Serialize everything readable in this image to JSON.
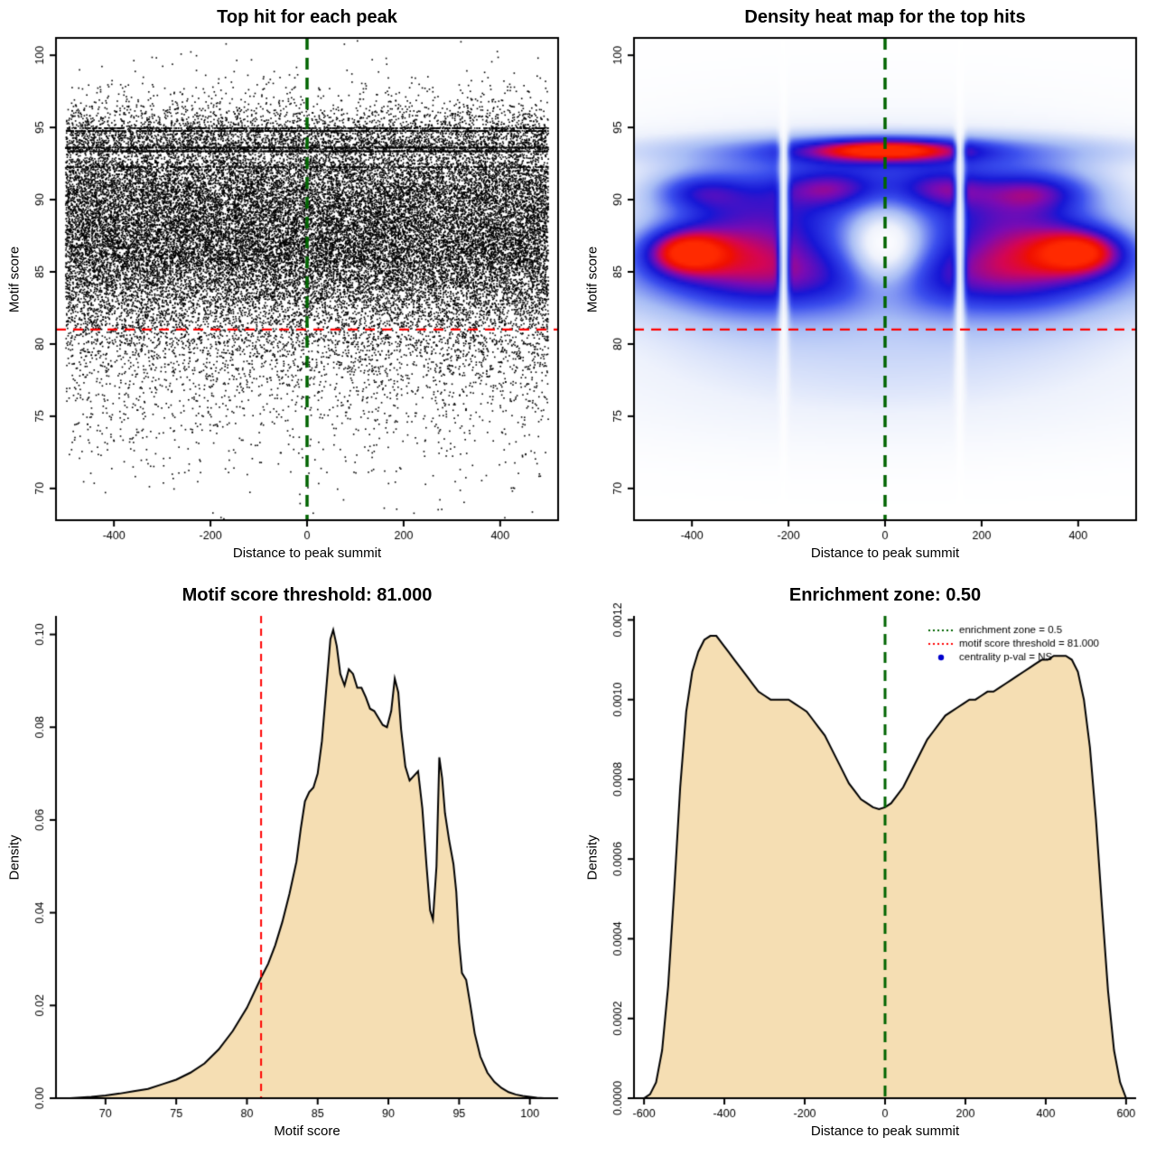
{
  "figure": {
    "background": "#ffffff",
    "layout": "2x2 grid of motif enrichment diagnostic plots"
  },
  "chart_data": [
    {
      "id": "top-hit-scatter",
      "type": "scatter",
      "title": "Top hit for each peak",
      "xlabel": "Distance to peak summit",
      "ylabel": "Motif score",
      "xlim": [
        -520,
        520
      ],
      "ylim": [
        67.8,
        101.2
      ],
      "xticks": [
        -400,
        -200,
        0,
        200,
        400
      ],
      "xtick_labels": [
        "-400",
        "-200",
        "0",
        "200",
        "400"
      ],
      "yticks": [
        70,
        75,
        80,
        85,
        90,
        95,
        100
      ],
      "ytick_labels": [
        "70",
        "75",
        "80",
        "85",
        "90",
        "95",
        "100"
      ],
      "box": true,
      "point_color": "#000000",
      "n_points": 36000,
      "x_distribution": {
        "type": "uniform",
        "min": -500,
        "max": 500
      },
      "y_distribution": {
        "type": "empirical",
        "source_chart": 2,
        "note": "motif scores sampled from the motif score density in panel 3"
      },
      "dense_score_lines": [
        {
          "y": 93.35,
          "n": 900
        },
        {
          "y": 93.6,
          "n": 700
        },
        {
          "y": 94.75,
          "n": 700
        },
        {
          "y": 94.95,
          "n": 500
        },
        {
          "y": 92.25,
          "n": 300
        }
      ],
      "vline": {
        "x": 0,
        "color": "#006400",
        "pattern": [
          13,
          9
        ],
        "width": 3.5
      },
      "hline": {
        "y": 81,
        "color": "#ff0000",
        "pattern": [
          11,
          8
        ],
        "width": 2.2
      }
    },
    {
      "id": "top-hits-heatmap",
      "type": "heatmap",
      "title": "Density heat map for the top hits",
      "xlabel": "Distance to peak summit",
      "ylabel": "Motif score",
      "xlim": [
        -520,
        520
      ],
      "ylim": [
        67.8,
        101.2
      ],
      "xticks": [
        -400,
        -200,
        0,
        200,
        400
      ],
      "xtick_labels": [
        "-400",
        "-200",
        "0",
        "200",
        "400"
      ],
      "yticks": [
        70,
        75,
        80,
        85,
        90,
        95,
        100
      ],
      "ytick_labels": [
        "70",
        "75",
        "80",
        "85",
        "90",
        "95",
        "100"
      ],
      "box": true,
      "colormap": [
        [
          0,
          "#ffffff"
        ],
        [
          0.12,
          "#eef2fc"
        ],
        [
          0.3,
          "#a8bdf5"
        ],
        [
          0.48,
          "#3c50ee"
        ],
        [
          0.62,
          "#1717d6"
        ],
        [
          0.74,
          "#7a0bb4"
        ],
        [
          0.84,
          "#d40556"
        ],
        [
          0.92,
          "#f01000"
        ],
        [
          1,
          "#ff2a00"
        ]
      ],
      "kernels": [
        {
          "x": -280,
          "y": 87.2,
          "sx": 130,
          "sy": 3.0,
          "w": 0.5
        },
        {
          "x": 280,
          "y": 87.2,
          "sx": 130,
          "sy": 3.0,
          "w": 0.5
        },
        {
          "x": 0,
          "y": 91.0,
          "sx": 200,
          "sy": 2.0,
          "w": 0.35
        },
        {
          "x": 0,
          "y": 84.5,
          "sx": 470,
          "sy": 1.8,
          "w": 0.3
        },
        {
          "x": 0,
          "y": 87.0,
          "sx": 500,
          "sy": 5.5,
          "w": 0.18
        },
        {
          "x": 0,
          "y": 80.0,
          "sx": 470,
          "sy": 3.5,
          "w": 0.13
        },
        {
          "x": 0,
          "y": 75.5,
          "sx": 430,
          "sy": 2.5,
          "w": 0.05
        },
        {
          "x": -420,
          "y": 86.4,
          "sx": 62,
          "sy": 1.15,
          "w": 0.55
        },
        {
          "x": 415,
          "y": 86.4,
          "sx": 68,
          "sy": 1.15,
          "w": 0.52
        },
        {
          "x": -390,
          "y": 90.6,
          "sx": 70,
          "sy": 0.95,
          "w": 0.3
        },
        {
          "x": 320,
          "y": 90.6,
          "sx": 80,
          "sy": 0.95,
          "w": 0.28
        },
        {
          "x": -120,
          "y": 90.8,
          "sx": 70,
          "sy": 0.85,
          "w": 0.22
        },
        {
          "x": 120,
          "y": 90.8,
          "sx": 60,
          "sy": 0.85,
          "w": 0.2
        },
        {
          "x": 0,
          "y": 93.45,
          "sx": 420,
          "sy": 0.85,
          "w": 0.28
        },
        {
          "x": 0,
          "y": 93.45,
          "sx": 115,
          "sy": 0.55,
          "w": 0.55
        },
        {
          "x": 0,
          "y": 86.5,
          "sx": 55,
          "sy": 2.2,
          "w": -0.45
        }
      ],
      "white_gaps": [
        {
          "x": -210,
          "sx": 7,
          "depth": 0.85
        },
        {
          "x": 155,
          "sx": 7,
          "depth": 0.85
        }
      ],
      "vline": {
        "x": 0,
        "color": "#006400",
        "pattern": [
          13,
          9
        ],
        "width": 3.5
      },
      "hline": {
        "y": 81,
        "color": "#ff0000",
        "pattern": [
          11,
          8
        ],
        "width": 2.2
      }
    },
    {
      "id": "motif-score-density",
      "type": "area",
      "title": "Motif score threshold: 81.000",
      "xlabel": "Motif score",
      "ylabel": "Density",
      "xlim": [
        66.5,
        102
      ],
      "ylim": [
        0,
        0.104
      ],
      "xticks": [
        70,
        75,
        80,
        85,
        90,
        95,
        100
      ],
      "xtick_labels": [
        "70",
        "75",
        "80",
        "85",
        "90",
        "95",
        "100"
      ],
      "yticks": [
        0,
        0.02,
        0.04,
        0.06,
        0.08,
        0.1
      ],
      "ytick_labels": [
        "0.00",
        "0.02",
        "0.04",
        "0.06",
        "0.08",
        "0.10"
      ],
      "box": false,
      "fill_color": "#f5deb3",
      "line_color": "#000000",
      "points": [
        [
          67.5,
          0
        ],
        [
          69,
          0.0003
        ],
        [
          70,
          0.0006
        ],
        [
          71,
          0.001
        ],
        [
          72,
          0.0015
        ],
        [
          73,
          0.002
        ],
        [
          74,
          0.003
        ],
        [
          75,
          0.004
        ],
        [
          76,
          0.0055
        ],
        [
          77,
          0.0075
        ],
        [
          78,
          0.0105
        ],
        [
          79,
          0.0145
        ],
        [
          80,
          0.0195
        ],
        [
          81,
          0.026
        ],
        [
          81.5,
          0.029
        ],
        [
          82,
          0.033
        ],
        [
          82.5,
          0.038
        ],
        [
          83,
          0.044
        ],
        [
          83.5,
          0.051
        ],
        [
          83.8,
          0.058
        ],
        [
          84.1,
          0.064
        ],
        [
          84.4,
          0.066
        ],
        [
          84.7,
          0.067
        ],
        [
          85,
          0.07
        ],
        [
          85.3,
          0.077
        ],
        [
          85.6,
          0.088
        ],
        [
          85.9,
          0.099
        ],
        [
          86.1,
          0.101
        ],
        [
          86.35,
          0.0975
        ],
        [
          86.6,
          0.0915
        ],
        [
          86.9,
          0.089
        ],
        [
          87.2,
          0.0925
        ],
        [
          87.5,
          0.0915
        ],
        [
          87.8,
          0.0885
        ],
        [
          88.1,
          0.0885
        ],
        [
          88.4,
          0.0865
        ],
        [
          88.7,
          0.084
        ],
        [
          89,
          0.0835
        ],
        [
          89.3,
          0.082
        ],
        [
          89.6,
          0.0805
        ],
        [
          89.9,
          0.08
        ],
        [
          90.2,
          0.0835
        ],
        [
          90.45,
          0.0905
        ],
        [
          90.7,
          0.0875
        ],
        [
          90.9,
          0.0795
        ],
        [
          91.2,
          0.0715
        ],
        [
          91.5,
          0.0685
        ],
        [
          91.8,
          0.0695
        ],
        [
          92.1,
          0.0705
        ],
        [
          92.4,
          0.0625
        ],
        [
          92.7,
          0.05
        ],
        [
          92.95,
          0.0405
        ],
        [
          93.15,
          0.0385
        ],
        [
          93.4,
          0.05
        ],
        [
          93.6,
          0.0735
        ],
        [
          93.8,
          0.069
        ],
        [
          94,
          0.0615
        ],
        [
          94.3,
          0.0555
        ],
        [
          94.6,
          0.0505
        ],
        [
          94.8,
          0.0445
        ],
        [
          95,
          0.0335
        ],
        [
          95.2,
          0.027
        ],
        [
          95.5,
          0.0255
        ],
        [
          95.8,
          0.02
        ],
        [
          96.1,
          0.014
        ],
        [
          96.5,
          0.009
        ],
        [
          97,
          0.0055
        ],
        [
          97.5,
          0.0035
        ],
        [
          98,
          0.0022
        ],
        [
          98.5,
          0.0013
        ],
        [
          99,
          0.0008
        ],
        [
          99.5,
          0.0005
        ],
        [
          100,
          0.0003
        ],
        [
          100.5,
          0.0001
        ],
        [
          101,
          0
        ]
      ],
      "vline": {
        "x": 81,
        "color": "#ff0000",
        "pattern": [
          8,
          6
        ],
        "width": 2
      }
    },
    {
      "id": "distance-density",
      "type": "area",
      "title": "Enrichment zone: 0.50",
      "xlabel": "Distance to peak summit",
      "ylabel": "Density",
      "xlim": [
        -625,
        625
      ],
      "ylim": [
        0,
        0.00121
      ],
      "xticks": [
        -600,
        -400,
        -200,
        0,
        200,
        400,
        600
      ],
      "xtick_labels": [
        "-600",
        "-400",
        "-200",
        "0",
        "200",
        "400",
        "600"
      ],
      "yticks": [
        0,
        0.0002,
        0.0004,
        0.0006,
        0.0008,
        0.001,
        0.0012
      ],
      "ytick_labels": [
        "0.0000",
        "0.0002",
        "0.0004",
        "0.0006",
        "0.0008",
        "0.0010",
        "0.0012"
      ],
      "box": false,
      "fill_color": "#f5deb3",
      "line_color": "#000000",
      "points": [
        [
          -600,
          0
        ],
        [
          -585,
          1e-05
        ],
        [
          -570,
          4e-05
        ],
        [
          -555,
          0.00012
        ],
        [
          -540,
          0.00028
        ],
        [
          -525,
          0.00052
        ],
        [
          -510,
          0.00078
        ],
        [
          -495,
          0.00097
        ],
        [
          -480,
          0.00107
        ],
        [
          -465,
          0.00112
        ],
        [
          -450,
          0.00115
        ],
        [
          -435,
          0.00116
        ],
        [
          -420,
          0.00116
        ],
        [
          -405,
          0.00114
        ],
        [
          -390,
          0.00112
        ],
        [
          -375,
          0.0011
        ],
        [
          -360,
          0.00108
        ],
        [
          -345,
          0.00106
        ],
        [
          -330,
          0.00104
        ],
        [
          -315,
          0.00102
        ],
        [
          -300,
          0.00101
        ],
        [
          -285,
          0.001
        ],
        [
          -270,
          0.001
        ],
        [
          -255,
          0.001
        ],
        [
          -240,
          0.001
        ],
        [
          -225,
          0.00099
        ],
        [
          -210,
          0.00098
        ],
        [
          -195,
          0.00097
        ],
        [
          -180,
          0.00095
        ],
        [
          -165,
          0.00093
        ],
        [
          -150,
          0.00091
        ],
        [
          -135,
          0.00088
        ],
        [
          -120,
          0.00085
        ],
        [
          -105,
          0.00082
        ],
        [
          -90,
          0.00079
        ],
        [
          -75,
          0.00077
        ],
        [
          -60,
          0.00075
        ],
        [
          -45,
          0.00074
        ],
        [
          -30,
          0.00073
        ],
        [
          -15,
          0.000725
        ],
        [
          0,
          0.00073
        ],
        [
          15,
          0.00074
        ],
        [
          30,
          0.00076
        ],
        [
          45,
          0.00078
        ],
        [
          60,
          0.00081
        ],
        [
          75,
          0.00084
        ],
        [
          90,
          0.00087
        ],
        [
          105,
          0.0009
        ],
        [
          120,
          0.00092
        ],
        [
          135,
          0.00094
        ],
        [
          150,
          0.00096
        ],
        [
          165,
          0.00097
        ],
        [
          180,
          0.00098
        ],
        [
          195,
          0.00099
        ],
        [
          210,
          0.001
        ],
        [
          225,
          0.001
        ],
        [
          240,
          0.00101
        ],
        [
          255,
          0.00102
        ],
        [
          270,
          0.00102
        ],
        [
          285,
          0.00103
        ],
        [
          300,
          0.00104
        ],
        [
          315,
          0.00105
        ],
        [
          330,
          0.00106
        ],
        [
          345,
          0.00107
        ],
        [
          360,
          0.00108
        ],
        [
          375,
          0.00109
        ],
        [
          390,
          0.0011
        ],
        [
          405,
          0.0011
        ],
        [
          420,
          0.00111
        ],
        [
          435,
          0.00111
        ],
        [
          450,
          0.00111
        ],
        [
          465,
          0.0011
        ],
        [
          480,
          0.00107
        ],
        [
          495,
          0.001
        ],
        [
          510,
          0.00088
        ],
        [
          525,
          0.0007
        ],
        [
          540,
          0.00048
        ],
        [
          555,
          0.00027
        ],
        [
          570,
          0.00012
        ],
        [
          585,
          4e-05
        ],
        [
          600,
          0
        ]
      ],
      "vline": {
        "x": 0,
        "color": "#006400",
        "pattern": [
          12,
          8
        ],
        "width": 3
      },
      "legend": {
        "items": [
          {
            "label": "enrichment zone = 0.5",
            "type": "line",
            "color": "#006400",
            "pattern": [
              2,
              3
            ]
          },
          {
            "label": "motif score threshold = 81.000",
            "type": "line",
            "color": "#ff0000",
            "pattern": [
              2,
              3
            ]
          },
          {
            "label": "centrality p-val = NS",
            "type": "point",
            "color": "#0000cd"
          }
        ]
      }
    }
  ]
}
